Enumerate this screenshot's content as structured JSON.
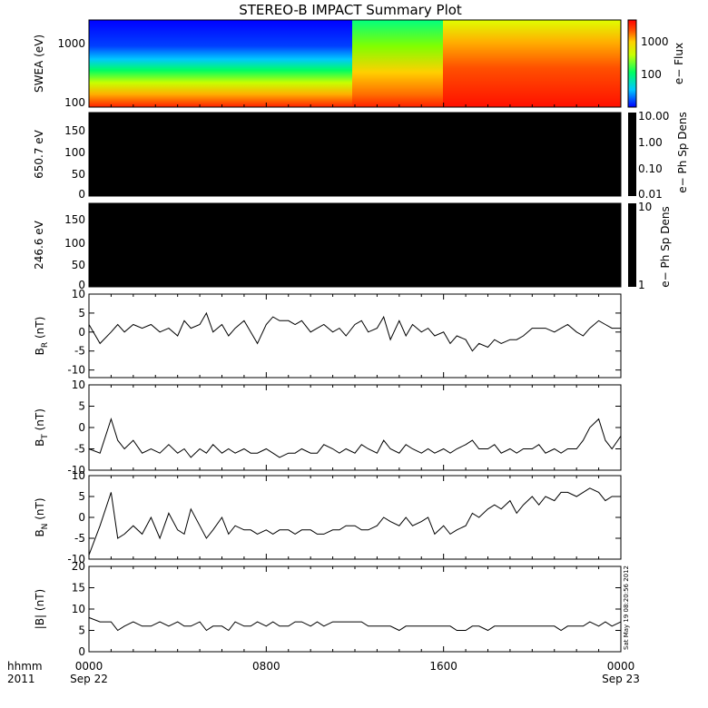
{
  "title": "STEREO-B IMPACT Summary Plot",
  "footer": {
    "hhmm": "hhmm",
    "year": "2011",
    "x_ticks": [
      {
        "hour": 0,
        "top": "0000",
        "bottom": "Sep 22"
      },
      {
        "hour": 8,
        "top": "0800",
        "bottom": ""
      },
      {
        "hour": 16,
        "top": "1600",
        "bottom": ""
      },
      {
        "hour": 24,
        "top": "0000",
        "bottom": "Sep 23"
      }
    ]
  },
  "timestamp": "Sat May 19 08:20:56 2012",
  "colors": {
    "spectrogram_scale": [
      "#0000ff",
      "#00c8ff",
      "#00ff60",
      "#c8ff00",
      "#ffd000",
      "#ff5000",
      "#ff0000"
    ],
    "blank_panel": "#000000",
    "trace": "#000000"
  },
  "chart_data": [
    {
      "type": "heatmap",
      "panel": "swea",
      "ylabel": "SWEA (eV)",
      "y_ticks": [
        "1000",
        "100"
      ],
      "colorbar": {
        "label": "e− Flux",
        "ticks": [
          "1000",
          "100"
        ]
      },
      "x_range_hours": [
        0,
        24
      ],
      "description_levels": "low flux (blue) above ~300 eV until ~12:00 UT, then elevated flux (orange/red) after ~17:00 UT"
    },
    {
      "type": "heatmap",
      "panel": "pad650",
      "ylabel": "650.7 eV",
      "y_ticks": [
        "150",
        "100",
        "50",
        "0"
      ],
      "ylim": [
        0,
        180
      ],
      "colorbar": {
        "label": "e− Ph Sp Dens",
        "ticks": [
          "10.00",
          "1.00",
          "0.10",
          "0.01"
        ]
      },
      "fill": "no data (black)"
    },
    {
      "type": "heatmap",
      "panel": "pad246",
      "ylabel": "246.6 eV",
      "y_ticks": [
        "150",
        "100",
        "50",
        "0"
      ],
      "ylim": [
        0,
        180
      ],
      "colorbar": {
        "label": "e− Ph Sp Dens",
        "ticks": [
          "10",
          "1"
        ]
      },
      "fill": "no data (black)"
    },
    {
      "type": "line",
      "panel": "br",
      "ylabel_main": "B",
      "ylabel_sub": "R",
      "ylabel_unit": "(nT)",
      "ylim": [
        -12,
        10
      ],
      "y_ticks": [
        10,
        5,
        0,
        -5,
        -10
      ],
      "x_hours": [
        0,
        0.5,
        1,
        1.3,
        1.6,
        2,
        2.4,
        2.8,
        3.2,
        3.6,
        4,
        4.3,
        4.6,
        5,
        5.3,
        5.6,
        6,
        6.3,
        6.6,
        7,
        7.3,
        7.6,
        8,
        8.3,
        8.6,
        9,
        9.3,
        9.6,
        10,
        10.3,
        10.6,
        11,
        11.3,
        11.6,
        12,
        12.3,
        12.6,
        13,
        13.3,
        13.6,
        14,
        14.3,
        14.6,
        15,
        15.3,
        15.6,
        16,
        16.3,
        16.6,
        17,
        17.3,
        17.6,
        18,
        18.3,
        18.6,
        19,
        19.3,
        19.6,
        20,
        20.3,
        20.6,
        21,
        21.3,
        21.6,
        22,
        22.3,
        22.6,
        23,
        23.3,
        23.6,
        24
      ],
      "y": [
        2,
        -3,
        0,
        2,
        0,
        2,
        1,
        2,
        0,
        1,
        -1,
        3,
        1,
        2,
        5,
        0,
        2,
        -1,
        1,
        3,
        0,
        -3,
        2,
        4,
        3,
        3,
        2,
        3,
        0,
        1,
        2,
        0,
        1,
        -1,
        2,
        3,
        0,
        1,
        4,
        -2,
        3,
        -1,
        2,
        0,
        1,
        -1,
        0,
        -3,
        -1,
        -2,
        -5,
        -3,
        -4,
        -2,
        -3,
        -2,
        -2,
        -1,
        1,
        1,
        1,
        0,
        1,
        2,
        0,
        -1,
        1,
        3,
        2,
        1,
        1
      ]
    },
    {
      "type": "line",
      "panel": "bt",
      "ylabel_main": "B",
      "ylabel_sub": "T",
      "ylabel_unit": "(nT)",
      "ylim": [
        -10,
        10
      ],
      "y_ticks": [
        10,
        5,
        0,
        -5,
        -10
      ],
      "x_hours": [
        0,
        0.5,
        1,
        1.3,
        1.6,
        2,
        2.4,
        2.8,
        3.2,
        3.6,
        4,
        4.3,
        4.6,
        5,
        5.3,
        5.6,
        6,
        6.3,
        6.6,
        7,
        7.3,
        7.6,
        8,
        8.3,
        8.6,
        9,
        9.3,
        9.6,
        10,
        10.3,
        10.6,
        11,
        11.3,
        11.6,
        12,
        12.3,
        12.6,
        13,
        13.3,
        13.6,
        14,
        14.3,
        14.6,
        15,
        15.3,
        15.6,
        16,
        16.3,
        16.6,
        17,
        17.3,
        17.6,
        18,
        18.3,
        18.6,
        19,
        19.3,
        19.6,
        20,
        20.3,
        20.6,
        21,
        21.3,
        21.6,
        22,
        22.3,
        22.6,
        23,
        23.3,
        23.6,
        24
      ],
      "y": [
        -5,
        -6,
        2,
        -3,
        -5,
        -3,
        -6,
        -5,
        -6,
        -4,
        -6,
        -5,
        -7,
        -5,
        -6,
        -4,
        -6,
        -5,
        -6,
        -5,
        -6,
        -6,
        -5,
        -6,
        -7,
        -6,
        -6,
        -5,
        -6,
        -6,
        -4,
        -5,
        -6,
        -5,
        -6,
        -4,
        -5,
        -6,
        -3,
        -5,
        -6,
        -4,
        -5,
        -6,
        -5,
        -6,
        -5,
        -6,
        -5,
        -4,
        -3,
        -5,
        -5,
        -4,
        -6,
        -5,
        -6,
        -5,
        -5,
        -4,
        -6,
        -5,
        -6,
        -5,
        -5,
        -3,
        0,
        2,
        -3,
        -5,
        -2
      ]
    },
    {
      "type": "line",
      "panel": "bn",
      "ylabel_main": "B",
      "ylabel_sub": "N",
      "ylabel_unit": "(nT)",
      "ylim": [
        -10,
        10
      ],
      "y_ticks": [
        10,
        5,
        0,
        -5,
        -10
      ],
      "x_hours": [
        0,
        0.5,
        1,
        1.3,
        1.6,
        2,
        2.4,
        2.8,
        3.2,
        3.6,
        4,
        4.3,
        4.6,
        5,
        5.3,
        5.6,
        6,
        6.3,
        6.6,
        7,
        7.3,
        7.6,
        8,
        8.3,
        8.6,
        9,
        9.3,
        9.6,
        10,
        10.3,
        10.6,
        11,
        11.3,
        11.6,
        12,
        12.3,
        12.6,
        13,
        13.3,
        13.6,
        14,
        14.3,
        14.6,
        15,
        15.3,
        15.6,
        16,
        16.3,
        16.6,
        17,
        17.3,
        17.6,
        18,
        18.3,
        18.6,
        19,
        19.3,
        19.6,
        20,
        20.3,
        20.6,
        21,
        21.3,
        21.6,
        22,
        22.3,
        22.6,
        23,
        23.3,
        23.6,
        24
      ],
      "y": [
        -9,
        -2,
        6,
        -5,
        -4,
        -2,
        -4,
        0,
        -5,
        1,
        -3,
        -4,
        2,
        -2,
        -5,
        -3,
        0,
        -4,
        -2,
        -3,
        -3,
        -4,
        -3,
        -4,
        -3,
        -3,
        -4,
        -3,
        -3,
        -4,
        -4,
        -3,
        -3,
        -2,
        -2,
        -3,
        -3,
        -2,
        0,
        -1,
        -2,
        0,
        -2,
        -1,
        0,
        -4,
        -2,
        -4,
        -3,
        -2,
        1,
        0,
        2,
        3,
        2,
        4,
        1,
        3,
        5,
        3,
        5,
        4,
        6,
        6,
        5,
        6,
        7,
        6,
        4,
        5,
        5
      ]
    },
    {
      "type": "line",
      "panel": "bmag",
      "ylabel_main": "|B|",
      "ylabel_sub": "",
      "ylabel_unit": "(nT)",
      "ylim": [
        0,
        20
      ],
      "y_ticks": [
        20,
        15,
        10,
        5,
        0
      ],
      "x_hours": [
        0,
        0.5,
        1,
        1.3,
        1.6,
        2,
        2.4,
        2.8,
        3.2,
        3.6,
        4,
        4.3,
        4.6,
        5,
        5.3,
        5.6,
        6,
        6.3,
        6.6,
        7,
        7.3,
        7.6,
        8,
        8.3,
        8.6,
        9,
        9.3,
        9.6,
        10,
        10.3,
        10.6,
        11,
        11.3,
        11.6,
        12,
        12.3,
        12.6,
        13,
        13.3,
        13.6,
        14,
        14.3,
        14.6,
        15,
        15.3,
        15.6,
        16,
        16.3,
        16.6,
        17,
        17.3,
        17.6,
        18,
        18.3,
        18.6,
        19,
        19.3,
        19.6,
        20,
        20.3,
        20.6,
        21,
        21.3,
        21.6,
        22,
        22.3,
        22.6,
        23,
        23.3,
        23.6,
        24
      ],
      "y": [
        8,
        7,
        7,
        5,
        6,
        7,
        6,
        6,
        7,
        6,
        7,
        6,
        6,
        7,
        5,
        6,
        6,
        5,
        7,
        6,
        6,
        7,
        6,
        7,
        6,
        6,
        7,
        7,
        6,
        7,
        6,
        7,
        7,
        7,
        7,
        7,
        6,
        6,
        6,
        6,
        5,
        6,
        6,
        6,
        6,
        6,
        6,
        6,
        5,
        5,
        6,
        6,
        5,
        6,
        6,
        6,
        6,
        6,
        6,
        6,
        6,
        6,
        5,
        6,
        6,
        6,
        7,
        6,
        7,
        6,
        7
      ]
    }
  ]
}
